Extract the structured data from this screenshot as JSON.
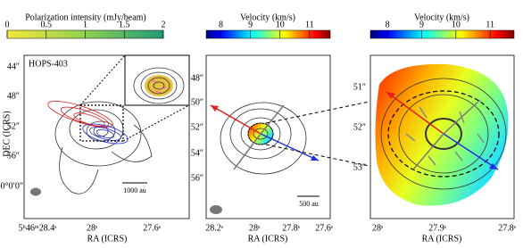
{
  "panels": [
    {
      "colorbar": {
        "title": "Polarization intensity (mJy/beam)",
        "lim": [
          0,
          2
        ],
        "ticks": [
          0,
          0.5,
          1,
          1.5,
          2
        ]
      },
      "label": "HOPS-403",
      "y_axis": {
        "label": "DEC (ICRS)",
        "ticks": [
          "44″",
          "48″",
          "52″",
          "56″",
          "-0°0′0″"
        ]
      },
      "x_axis": {
        "label": "RA (ICRS)",
        "ticks": [
          "5ʰ46ᵐ28.4ˢ",
          "28ˢ",
          "27.6ˢ"
        ]
      },
      "scale_bar": "1000 au"
    },
    {
      "colorbar": {
        "title": "Velocity (km/s)",
        "lim": [
          7.5,
          11.7
        ],
        "ticks": [
          8,
          9,
          10,
          11
        ]
      },
      "y_axis": {
        "ticks": [
          "48″",
          "50″",
          "52″",
          "54″",
          "56″"
        ]
      },
      "x_axis": {
        "label": "RA (ICRS)",
        "ticks": [
          "28.2ˢ",
          "28ˢ",
          "27.8ˢ",
          "27.6ˢ"
        ]
      },
      "scale_bar": "500 au"
    },
    {
      "colorbar": {
        "title": "Velocity (km/s)",
        "lim": [
          7.5,
          11.7
        ],
        "ticks": [
          8,
          9,
          10,
          11
        ]
      },
      "y_axis": {
        "ticks": [
          "51″",
          "52″",
          "53″"
        ]
      },
      "x_axis": {
        "label": "RA (ICRS)",
        "ticks": [
          "28ˢ",
          "27.9ˢ",
          "27.8ˢ"
        ]
      }
    }
  ]
}
